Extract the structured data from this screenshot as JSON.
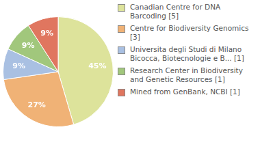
{
  "chart_data": {
    "type": "pie",
    "categories": [
      "Canadian Centre for DNA Barcoding [5]",
      "Centre for Biodiversity Genomics [3]",
      "Universita degli Studi di Milano Bicocca, Biotecnologie e B... [1]",
      "Research Center in Biodiversity and Genetic Resources [1]",
      "Mined from GenBank, NCBI [1]"
    ],
    "values": [
      45,
      27,
      9,
      9,
      9
    ],
    "value_labels": [
      "45%",
      "27%",
      "9%",
      "9%",
      "9%"
    ],
    "colors": [
      "#dde39b",
      "#f0b276",
      "#a9c0e2",
      "#a1c77c",
      "#e0765f"
    ],
    "data_labels": true,
    "legend": "right"
  }
}
